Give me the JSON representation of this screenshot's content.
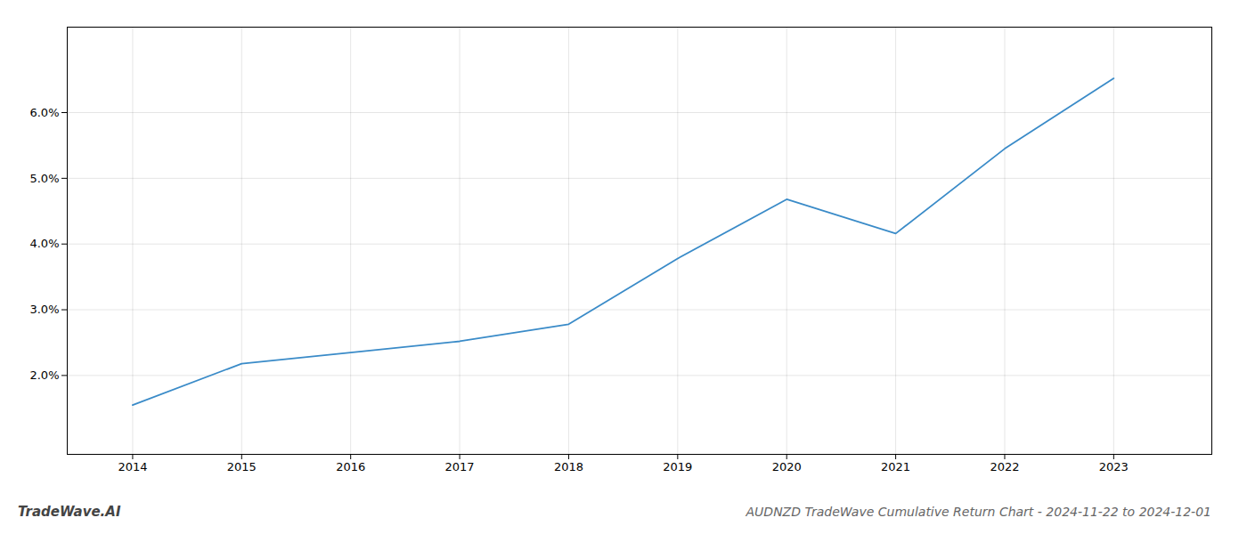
{
  "chart_data": {
    "type": "line",
    "title": "AUDNZD TradeWave Cumulative Return Chart - 2024-11-22 to 2024-12-01",
    "annotations": [
      "TradeWave.AI"
    ],
    "x": [
      2014,
      2015,
      2016,
      2017,
      2018,
      2019,
      2020,
      2021,
      2022,
      2023
    ],
    "values": [
      0.0155,
      0.0218,
      0.0235,
      0.0252,
      0.0278,
      0.0378,
      0.0468,
      0.0416,
      0.0545,
      0.0652
    ],
    "color": "#3a8bc8",
    "xlim": [
      2013.4,
      2023.9
    ],
    "ylim": [
      0.008,
      0.073
    ],
    "xticks": [
      2014,
      2015,
      2016,
      2017,
      2018,
      2019,
      2020,
      2021,
      2022,
      2023
    ],
    "yticks": [
      {
        "value": 0.02,
        "label": "2.0%"
      },
      {
        "value": 0.03,
        "label": "3.0%"
      },
      {
        "value": 0.04,
        "label": "4.0%"
      },
      {
        "value": 0.05,
        "label": "5.0%"
      },
      {
        "value": 0.06,
        "label": "6.0%"
      }
    ],
    "grid": true
  }
}
